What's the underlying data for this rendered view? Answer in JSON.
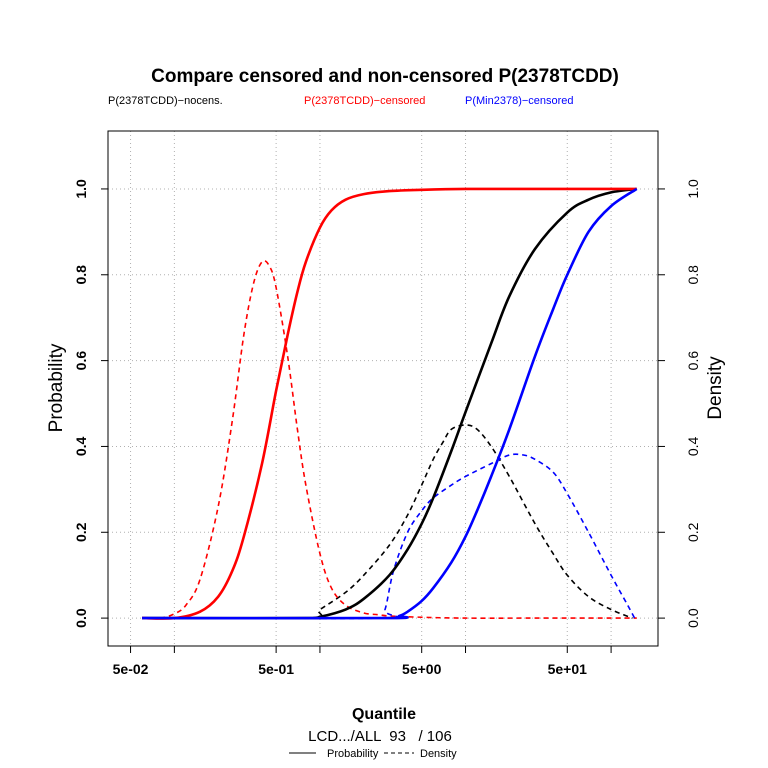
{
  "chart_data": {
    "type": "line",
    "title": "Compare censored and non-censored P(2378TCDD)",
    "xlabel": "Quantile",
    "ylabel": "Probability",
    "ylabel_right": "Density",
    "xscale": "log",
    "xlim": [
      0.035,
      210
    ],
    "ylim": [
      -0.065,
      1.135
    ],
    "y2lim": [
      -0.065,
      1.135
    ],
    "grid": true,
    "x_ticks": [
      0.05,
      0.5,
      5,
      50
    ],
    "x_tick_labels": [
      "5e-02",
      "5e-01",
      "5e+00",
      "5e+01"
    ],
    "x_minor_ticks": [
      0.1,
      1,
      10,
      100
    ],
    "y_ticks": [
      0,
      0.2,
      0.4,
      0.6,
      0.8,
      1.0
    ],
    "y_tick_labels": [
      "0.0",
      "0.2",
      "0.4",
      "0.6",
      "0.8",
      "1.0"
    ],
    "y2_ticks": [
      0,
      0.2,
      0.4,
      0.6,
      0.8,
      1.0
    ],
    "y2_tick_labels": [
      "0.0",
      "0.2",
      "0.4",
      "0.6",
      "0.8",
      "1.0"
    ],
    "legend_top": [
      {
        "label": "P(2378TCDD)−nocens.",
        "color": "#000000"
      },
      {
        "label": "P(2378TCDD)−censored",
        "color": "#ff0000"
      },
      {
        "label": "P(Min2378)−censored",
        "color": "#0000ff"
      }
    ],
    "footer": "LCD.../ALL  93   / 106",
    "legend_bottom": [
      {
        "label": "Probability",
        "dash": "solid"
      },
      {
        "label": "Density",
        "dash": "dashed"
      }
    ],
    "series": [
      {
        "name": "P(2378TCDD)−nocens.",
        "kind": "probability",
        "color": "#000000",
        "x": [
          0.06,
          0.8,
          1.0,
          1.5,
          2,
          3,
          4,
          5,
          6,
          8,
          10,
          15,
          20,
          30,
          50,
          70,
          100,
          150
        ],
        "y": [
          0.0,
          0.0,
          0.003,
          0.02,
          0.045,
          0.1,
          0.16,
          0.22,
          0.28,
          0.39,
          0.48,
          0.64,
          0.75,
          0.86,
          0.945,
          0.975,
          0.992,
          1.0
        ]
      },
      {
        "name": "P(2378TCDD)−censored",
        "kind": "probability",
        "color": "#ff0000",
        "x": [
          0.06,
          0.1,
          0.15,
          0.2,
          0.25,
          0.3,
          0.4,
          0.5,
          0.6,
          0.7,
          0.8,
          1.0,
          1.2,
          1.5,
          2,
          3,
          5,
          10,
          30,
          150
        ],
        "y": [
          0.0,
          0.0,
          0.015,
          0.05,
          0.11,
          0.19,
          0.36,
          0.53,
          0.66,
          0.76,
          0.83,
          0.91,
          0.95,
          0.975,
          0.988,
          0.995,
          0.998,
          1.0,
          1.0,
          1.0
        ]
      },
      {
        "name": "P(Min2378)−censored",
        "kind": "probability",
        "color": "#0000ff",
        "x": [
          0.06,
          2.8,
          3.5,
          4,
          5,
          6,
          8,
          10,
          12,
          15,
          20,
          30,
          40,
          50,
          70,
          100,
          150
        ],
        "y": [
          0.0,
          0.0,
          0.005,
          0.015,
          0.04,
          0.07,
          0.13,
          0.19,
          0.25,
          0.33,
          0.44,
          0.61,
          0.72,
          0.8,
          0.9,
          0.96,
          1.0
        ]
      },
      {
        "name": "P(2378TCDD)−nocens.",
        "kind": "density",
        "color": "#000000",
        "x": [
          0.06,
          0.8,
          1.0,
          1.5,
          2,
          3,
          4,
          5,
          6,
          7,
          8,
          10,
          12,
          15,
          20,
          30,
          40,
          50,
          70,
          100,
          140
        ],
        "y": [
          0.0,
          0.0,
          0.02,
          0.06,
          0.1,
          0.17,
          0.24,
          0.31,
          0.37,
          0.41,
          0.44,
          0.45,
          0.44,
          0.4,
          0.33,
          0.22,
          0.15,
          0.1,
          0.05,
          0.02,
          0.0
        ]
      },
      {
        "name": "P(2378TCDD)−censored",
        "kind": "density",
        "color": "#ff0000",
        "x": [
          0.06,
          0.08,
          0.1,
          0.12,
          0.15,
          0.2,
          0.25,
          0.3,
          0.35,
          0.4,
          0.45,
          0.5,
          0.6,
          0.7,
          0.8,
          1.0,
          1.2,
          1.5,
          2,
          2.5,
          3,
          5,
          10,
          30,
          150
        ],
        "y": [
          0.0,
          0.0,
          0.01,
          0.03,
          0.09,
          0.26,
          0.46,
          0.66,
          0.78,
          0.83,
          0.82,
          0.77,
          0.61,
          0.44,
          0.31,
          0.15,
          0.07,
          0.03,
          0.012,
          0.008,
          0.005,
          0.002,
          0.0,
          0.0,
          0.0
        ]
      },
      {
        "name": "P(Min2378)−censored",
        "kind": "density",
        "color": "#0000ff",
        "x": [
          0.06,
          2.5,
          2.8,
          3.2,
          4,
          5,
          6,
          8,
          10,
          15,
          20,
          25,
          30,
          40,
          50,
          70,
          100,
          130,
          145
        ],
        "y": [
          0.0,
          0.0,
          0.02,
          0.11,
          0.2,
          0.25,
          0.28,
          0.31,
          0.33,
          0.36,
          0.38,
          0.38,
          0.37,
          0.34,
          0.29,
          0.2,
          0.1,
          0.03,
          0.0
        ]
      }
    ]
  }
}
